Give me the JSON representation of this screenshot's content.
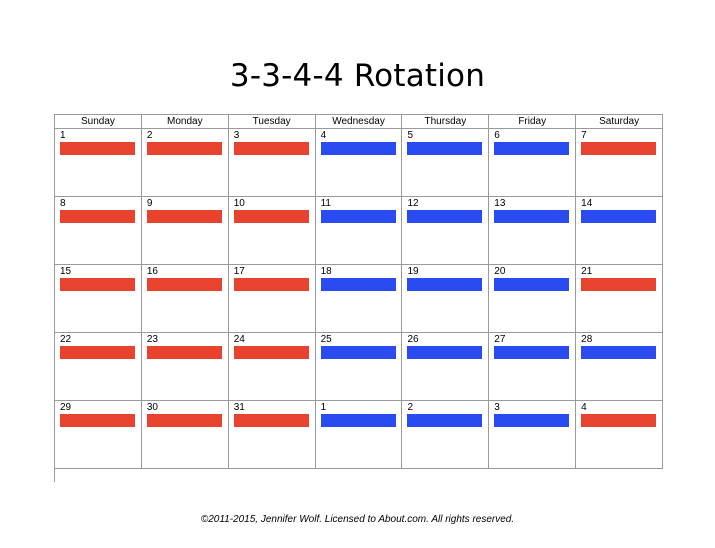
{
  "title": "3-3-4-4 Rotation",
  "colors": {
    "red_shift": "#e8432f",
    "blue_shift": "#2a4bf0",
    "grid": "#9a9a9a"
  },
  "weekdays": [
    "Sunday",
    "Monday",
    "Tuesday",
    "Wednesday",
    "Thursday",
    "Friday",
    "Saturday"
  ],
  "weeks": [
    {
      "days": [
        {
          "num": "1",
          "shift": "red"
        },
        {
          "num": "2",
          "shift": "red"
        },
        {
          "num": "3",
          "shift": "red"
        },
        {
          "num": "4",
          "shift": "blue"
        },
        {
          "num": "5",
          "shift": "blue"
        },
        {
          "num": "6",
          "shift": "blue"
        },
        {
          "num": "7",
          "shift": "red"
        }
      ]
    },
    {
      "days": [
        {
          "num": "8",
          "shift": "red"
        },
        {
          "num": "9",
          "shift": "red"
        },
        {
          "num": "10",
          "shift": "red"
        },
        {
          "num": "11",
          "shift": "blue"
        },
        {
          "num": "12",
          "shift": "blue"
        },
        {
          "num": "13",
          "shift": "blue"
        },
        {
          "num": "14",
          "shift": "blue"
        }
      ]
    },
    {
      "days": [
        {
          "num": "15",
          "shift": "red"
        },
        {
          "num": "16",
          "shift": "red"
        },
        {
          "num": "17",
          "shift": "red"
        },
        {
          "num": "18",
          "shift": "blue"
        },
        {
          "num": "19",
          "shift": "blue"
        },
        {
          "num": "20",
          "shift": "blue"
        },
        {
          "num": "21",
          "shift": "red"
        }
      ]
    },
    {
      "days": [
        {
          "num": "22",
          "shift": "red"
        },
        {
          "num": "23",
          "shift": "red"
        },
        {
          "num": "24",
          "shift": "red"
        },
        {
          "num": "25",
          "shift": "blue"
        },
        {
          "num": "26",
          "shift": "blue"
        },
        {
          "num": "27",
          "shift": "blue"
        },
        {
          "num": "28",
          "shift": "blue"
        }
      ]
    },
    {
      "days": [
        {
          "num": "29",
          "shift": "red"
        },
        {
          "num": "30",
          "shift": "red"
        },
        {
          "num": "31",
          "shift": "red"
        },
        {
          "num": "1",
          "shift": "blue"
        },
        {
          "num": "2",
          "shift": "blue"
        },
        {
          "num": "3",
          "shift": "blue"
        },
        {
          "num": "4",
          "shift": "red"
        }
      ]
    }
  ],
  "footer": "©2011-2015, Jennifer Wolf. Licensed to About.com. All rights reserved."
}
